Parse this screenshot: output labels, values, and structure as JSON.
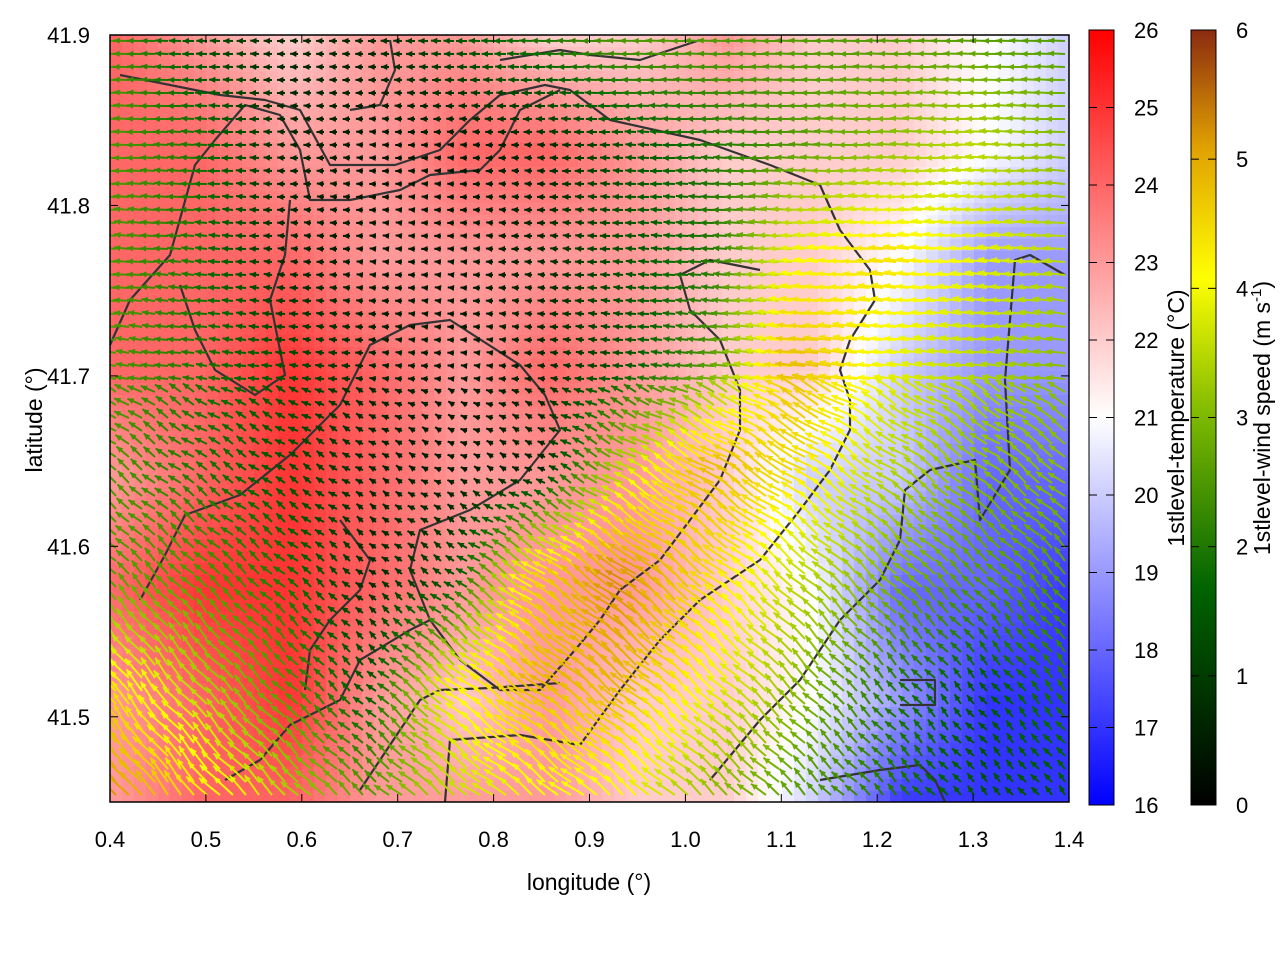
{
  "chart_data": {
    "type": "heatmap",
    "xlabel": "longitude (°)",
    "ylabel": "latitude (°)",
    "xlim": [
      0.4,
      1.4
    ],
    "ylim": [
      41.45,
      41.9
    ],
    "xticks": [
      "0.4",
      "0.5",
      "0.6",
      "0.7",
      "0.8",
      "0.9",
      "1.0",
      "1.1",
      "1.2",
      "1.3",
      "1.4"
    ],
    "yticks": [
      "41.5",
      "41.6",
      "41.7",
      "41.8",
      "41.9"
    ],
    "grid": false,
    "temperature_colorbar": {
      "label": "1stlevel-temperature (°C)",
      "range": [
        16,
        26
      ],
      "ticks": [
        "16",
        "17",
        "18",
        "19",
        "20",
        "21",
        "22",
        "23",
        "24",
        "25",
        "26"
      ],
      "colors": [
        "#0000ff",
        "#ffffff",
        "#ff0000"
      ]
    },
    "wind_colorbar": {
      "label_main": "1stlevel-wind speed (m s",
      "label_sup": "-1",
      "label_end": ")",
      "range": [
        0,
        6
      ],
      "ticks": [
        "0",
        "1",
        "2",
        "3",
        "4",
        "5",
        "6"
      ],
      "colors": [
        "#000000",
        "#006400",
        "#7cb800",
        "#ffff00",
        "#e0a000",
        "#8b2a10"
      ]
    },
    "temperature_field": [
      [
        24,
        23,
        22,
        23,
        23,
        22,
        22,
        23,
        22,
        22,
        21,
        20
      ],
      [
        24,
        24,
        23,
        23,
        24,
        24,
        23,
        22,
        22,
        22,
        21,
        20
      ],
      [
        24,
        24,
        24,
        23,
        23,
        23,
        23,
        22,
        22,
        21,
        19,
        19
      ],
      [
        24,
        24,
        25,
        24,
        23,
        24,
        23,
        22,
        22,
        20,
        19,
        19
      ],
      [
        23,
        24,
        25,
        24,
        23,
        23,
        23,
        22,
        20,
        20,
        18,
        18
      ],
      [
        24,
        25,
        25,
        24,
        23,
        23,
        23,
        22,
        21,
        18,
        18,
        17
      ],
      [
        23,
        24,
        25,
        23,
        22,
        23,
        22,
        22,
        21,
        19,
        17,
        17
      ],
      [
        23,
        24,
        24,
        23,
        23,
        23,
        22,
        22,
        20,
        17,
        17,
        17
      ]
    ],
    "wind_field": [
      [
        2,
        1,
        0.5,
        0.5,
        1,
        1.5,
        2,
        2,
        2,
        2,
        2,
        2
      ],
      [
        2,
        1.5,
        0.5,
        0.3,
        0.3,
        0.5,
        1,
        1.5,
        2,
        2.5,
        3,
        2.5
      ],
      [
        2,
        1.5,
        0.5,
        0.3,
        0.3,
        0.5,
        1,
        1.5,
        3.5,
        4,
        3.5,
        3
      ],
      [
        2,
        1.5,
        1,
        0.5,
        0.3,
        0.5,
        1,
        2,
        4.5,
        3.5,
        3,
        2.5
      ],
      [
        2,
        1.5,
        1,
        0.5,
        0.3,
        0.5,
        3,
        4.5,
        4,
        3,
        2.5,
        2.5
      ],
      [
        2,
        2,
        1.5,
        0.5,
        1,
        4,
        5,
        4,
        3,
        2.5,
        2,
        2
      ],
      [
        4,
        3,
        2,
        1,
        3.5,
        4.5,
        4.5,
        3.5,
        2.5,
        1.5,
        1,
        1.5
      ],
      [
        5,
        4,
        3,
        2,
        3,
        3.5,
        3.5,
        2.5,
        2,
        1.5,
        1,
        1
      ]
    ]
  }
}
